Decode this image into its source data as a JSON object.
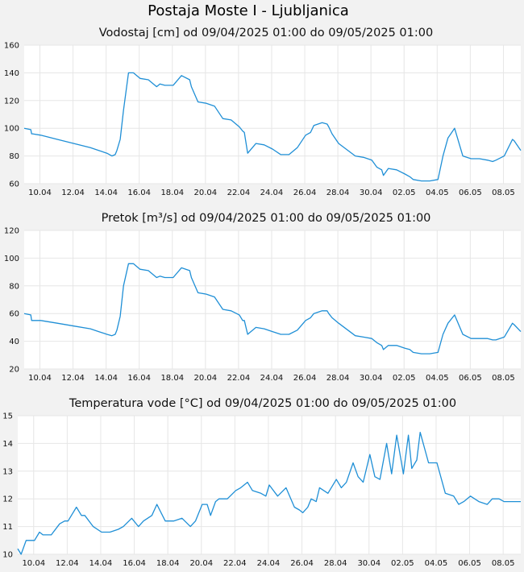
{
  "title": "Postaja Moste I - Ljubljanica",
  "colors": {
    "series": "#1f8fd6",
    "plot_bg": "#ffffff",
    "page_bg": "#f2f2f2",
    "grid": "#e6e6e6"
  },
  "chart_data": [
    {
      "type": "line",
      "title": "Vodostaj [cm] od 09/04/2025 01:00 do 09/05/2025 01:00",
      "xlabel": "",
      "ylabel": "",
      "ylim": [
        60,
        160
      ],
      "yticks": [
        "60",
        "80",
        "100",
        "120",
        "140",
        "160"
      ],
      "xticks": [
        "10.04",
        "12.04",
        "14.04",
        "16.04",
        "18.04",
        "20.04",
        "22.04",
        "24.04",
        "26.04",
        "28.04",
        "30.04",
        "02.05",
        "04.05",
        "06.05",
        "08.05"
      ],
      "grid": true,
      "series": [
        {
          "x": [
            0,
            0.4,
            0.45,
            0.5,
            1,
            2,
            3,
            4,
            4.5,
            5,
            5.3,
            5.5,
            5.6,
            5.8,
            6,
            6.3,
            6.6,
            7,
            7.5,
            8,
            8.2,
            8.5,
            9,
            9.5,
            10,
            10.1,
            10.5,
            11,
            11.5,
            12,
            12.5,
            13,
            13.2,
            13.3,
            13.5,
            14,
            14.5,
            15,
            15.5,
            16,
            16.5,
            17,
            17.3,
            17.5,
            18,
            18.3,
            18.4,
            18.6,
            19,
            20,
            20.5,
            21,
            21.3,
            21.6,
            21.7,
            22,
            22.5,
            23,
            23.3,
            23.5,
            24,
            24.5,
            25,
            25.3,
            25.6,
            26,
            26.5,
            27,
            27.5,
            28,
            28.3,
            28.5,
            29,
            29.5,
            29.6,
            30
          ],
          "y": [
            100,
            99,
            96,
            96,
            95,
            92,
            89,
            86,
            84,
            82,
            80,
            81,
            84,
            92,
            113,
            140,
            140,
            136,
            135,
            130,
            132,
            131,
            131,
            138,
            135,
            130,
            119,
            118,
            116,
            107,
            106,
            101,
            98,
            97,
            82,
            89,
            88,
            85,
            81,
            81,
            86,
            95,
            97,
            102,
            104,
            103,
            101,
            96,
            89,
            80,
            79,
            77,
            72,
            70,
            66,
            71,
            70,
            67,
            65,
            63,
            62,
            62,
            63,
            80,
            93,
            100,
            80,
            78,
            78,
            77,
            76,
            77,
            80,
            92,
            91,
            84
          ]
        }
      ]
    },
    {
      "type": "line",
      "title": "Pretok [m³/s] od 09/04/2025 01:00 do 09/05/2025 01:00",
      "xlabel": "",
      "ylabel": "",
      "ylim": [
        20,
        120
      ],
      "yticks": [
        "20",
        "40",
        "60",
        "80",
        "100",
        "120"
      ],
      "xticks": [
        "10.04",
        "12.04",
        "14.04",
        "16.04",
        "18.04",
        "20.04",
        "22.04",
        "24.04",
        "26.04",
        "28.04",
        "30.04",
        "02.05",
        "04.05",
        "06.05",
        "08.05"
      ],
      "grid": true,
      "series": [
        {
          "x": [
            0,
            0.4,
            0.45,
            0.5,
            1,
            2,
            3,
            4,
            4.5,
            5,
            5.3,
            5.5,
            5.6,
            5.8,
            6,
            6.3,
            6.6,
            7,
            7.5,
            8,
            8.2,
            8.5,
            9,
            9.5,
            10,
            10.1,
            10.5,
            11,
            11.5,
            12,
            12.5,
            13,
            13.2,
            13.3,
            13.5,
            14,
            14.5,
            15,
            15.5,
            16,
            16.5,
            17,
            17.3,
            17.5,
            18,
            18.3,
            18.4,
            18.6,
            19,
            20,
            20.5,
            21,
            21.3,
            21.6,
            21.7,
            22,
            22.5,
            23,
            23.3,
            23.5,
            24,
            24.5,
            25,
            25.3,
            25.6,
            26,
            26.5,
            27,
            27.5,
            28,
            28.3,
            28.5,
            29,
            29.5,
            29.6,
            30
          ],
          "y": [
            60,
            59,
            55,
            55,
            55,
            53,
            51,
            49,
            47,
            45,
            44,
            45,
            48,
            58,
            80,
            96,
            96,
            92,
            91,
            86,
            87,
            86,
            86,
            93,
            91,
            86,
            75,
            74,
            72,
            63,
            62,
            59,
            55,
            55,
            45,
            50,
            49,
            47,
            45,
            45,
            48,
            55,
            57,
            60,
            62,
            62,
            60,
            57,
            53,
            44,
            43,
            42,
            39,
            37,
            34,
            37,
            37,
            35,
            34,
            32,
            31,
            31,
            32,
            45,
            53,
            59,
            45,
            42,
            42,
            42,
            41,
            41,
            43,
            53,
            52,
            47
          ]
        }
      ]
    },
    {
      "type": "line",
      "title": "Temperatura vode [°C] od 09/04/2025 01:00 do 09/05/2025 01:00",
      "xlabel": "",
      "ylabel": "",
      "ylim": [
        10,
        15
      ],
      "yticks": [
        "10",
        "11",
        "12",
        "13",
        "14",
        "15"
      ],
      "xticks": [
        "10.04",
        "12.04",
        "14.04",
        "16.04",
        "18.04",
        "20.04",
        "22.04",
        "24.04",
        "26.04",
        "28.04",
        "30.04",
        "02.05",
        "04.05",
        "06.05",
        "08.05"
      ],
      "grid": true,
      "series": [
        {
          "x": [
            0,
            0.2,
            0.5,
            1,
            1.3,
            1.5,
            2,
            2.5,
            2.8,
            3,
            3.5,
            3.8,
            4,
            4.5,
            5,
            5.5,
            6,
            6.3,
            6.8,
            7.2,
            7.5,
            8,
            8.3,
            8.8,
            9.3,
            9.8,
            10.3,
            10.6,
            11,
            11.3,
            11.5,
            11.8,
            12,
            12.5,
            13,
            13.3,
            13.7,
            14,
            14.5,
            14.8,
            15,
            15.5,
            16,
            16.5,
            16.8,
            17,
            17.3,
            17.5,
            17.8,
            18,
            18.5,
            19,
            19.3,
            19.6,
            20,
            20.3,
            20.6,
            21,
            21.3,
            21.6,
            22,
            22.3,
            22.6,
            23,
            23.3,
            23.5,
            23.8,
            24,
            24.5,
            25,
            25.5,
            26,
            26.3,
            26.6,
            27,
            27.5,
            28,
            28.3,
            28.7,
            29,
            29.5,
            30
          ],
          "y": [
            10.2,
            10.0,
            10.5,
            10.5,
            10.8,
            10.7,
            10.7,
            11.1,
            11.2,
            11.2,
            11.7,
            11.4,
            11.4,
            11.0,
            10.8,
            10.8,
            10.9,
            11.0,
            11.3,
            11.0,
            11.2,
            11.4,
            11.8,
            11.2,
            11.2,
            11.3,
            11.0,
            11.2,
            11.8,
            11.8,
            11.4,
            11.9,
            12.0,
            12.0,
            12.3,
            12.4,
            12.6,
            12.3,
            12.2,
            12.1,
            12.5,
            12.1,
            12.4,
            11.7,
            11.6,
            11.5,
            11.7,
            12.0,
            11.9,
            12.4,
            12.2,
            12.7,
            12.4,
            12.6,
            13.3,
            12.8,
            12.6,
            13.6,
            12.8,
            12.7,
            14.0,
            12.9,
            14.3,
            12.9,
            14.3,
            13.1,
            13.4,
            14.4,
            13.3,
            13.3,
            12.2,
            12.1,
            11.8,
            11.9,
            12.1,
            11.9,
            11.8,
            12.0,
            12.0,
            11.9,
            11.9,
            11.9
          ]
        }
      ]
    }
  ]
}
